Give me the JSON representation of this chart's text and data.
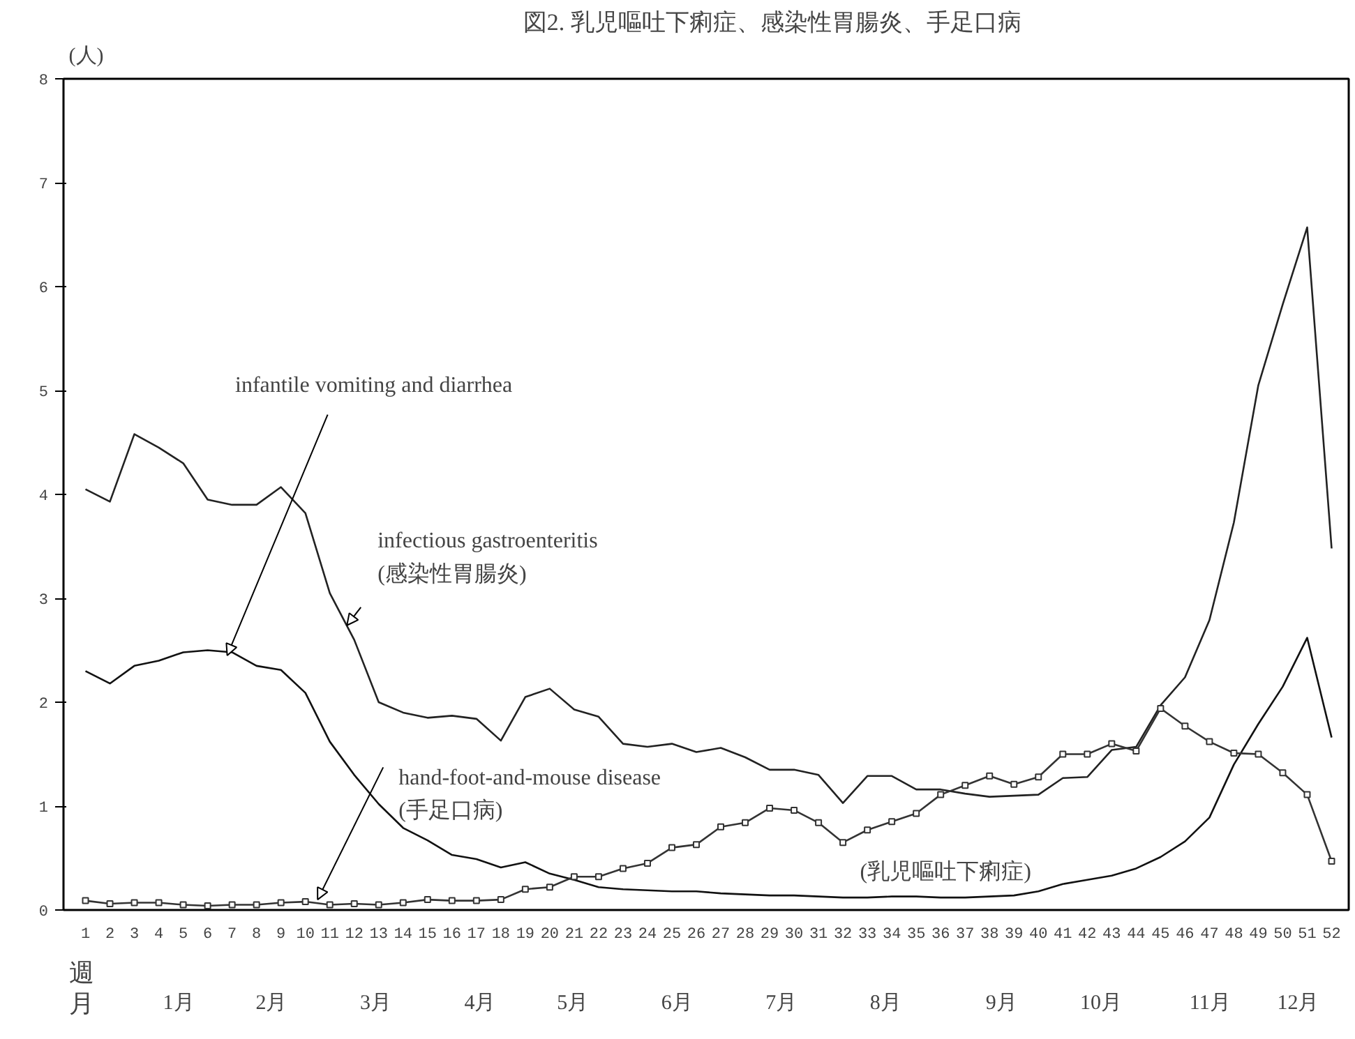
{
  "chart_data": {
    "type": "line",
    "title": "図2. 乳児嘔吐下痢症、感染性胃腸炎、手足口病",
    "ylabel": "(人)",
    "xlabel": "週",
    "x2label": "月",
    "x": [
      1,
      2,
      3,
      4,
      5,
      6,
      7,
      8,
      9,
      10,
      11,
      12,
      13,
      14,
      15,
      16,
      17,
      18,
      19,
      20,
      21,
      22,
      23,
      24,
      25,
      26,
      27,
      28,
      29,
      30,
      31,
      32,
      33,
      34,
      35,
      36,
      37,
      38,
      39,
      40,
      41,
      42,
      43,
      44,
      45,
      46,
      47,
      48,
      49,
      50,
      51,
      52
    ],
    "xlim": [
      0.1,
      52.7
    ],
    "ylim": [
      0,
      8
    ],
    "yticks": [
      0,
      1,
      2,
      3,
      4,
      5,
      6,
      7,
      8
    ],
    "xticks": [
      1,
      2,
      3,
      4,
      5,
      6,
      7,
      8,
      9,
      10,
      11,
      12,
      13,
      14,
      15,
      16,
      17,
      18,
      19,
      20,
      21,
      22,
      23,
      24,
      25,
      26,
      27,
      28,
      29,
      30,
      31,
      32,
      33,
      34,
      35,
      36,
      37,
      38,
      39,
      40,
      41,
      42,
      43,
      44,
      45,
      46,
      47,
      48,
      49,
      50,
      51,
      52
    ],
    "series": [
      {
        "color": "#222222",
        "marker": "none",
        "values": [
          4.05,
          3.93,
          4.58,
          4.45,
          4.3,
          3.95,
          3.9,
          3.9,
          4.07,
          3.82,
          3.05,
          2.6,
          2.0,
          1.9,
          1.85,
          1.87,
          1.84,
          1.63,
          2.05,
          2.13,
          1.93,
          1.86,
          1.6,
          1.57,
          1.6,
          1.52,
          1.56,
          1.47,
          1.35,
          1.35,
          1.3,
          1.03,
          1.29,
          1.29,
          1.16,
          1.16,
          1.12,
          1.09,
          1.1,
          1.11,
          1.27,
          1.28,
          1.54,
          1.57,
          1.97,
          2.24,
          2.79,
          3.73,
          5.05,
          5.83,
          6.57,
          3.48
        ]
      },
      {
        "color": "#111111",
        "marker": "none",
        "values": [
          2.3,
          2.18,
          2.35,
          2.4,
          2.48,
          2.5,
          2.48,
          2.35,
          2.31,
          2.09,
          1.62,
          1.3,
          1.02,
          0.79,
          0.67,
          0.53,
          0.49,
          0.41,
          0.46,
          0.35,
          0.29,
          0.22,
          0.2,
          0.19,
          0.18,
          0.18,
          0.16,
          0.15,
          0.14,
          0.14,
          0.13,
          0.12,
          0.12,
          0.13,
          0.13,
          0.12,
          0.12,
          0.13,
          0.14,
          0.18,
          0.25,
          0.29,
          0.33,
          0.4,
          0.51,
          0.66,
          0.89,
          1.4,
          1.79,
          2.15,
          2.62,
          1.66
        ]
      },
      {
        "color": "#333333",
        "marker": "square",
        "values": [
          0.09,
          0.06,
          0.07,
          0.07,
          0.05,
          0.04,
          0.05,
          0.05,
          0.07,
          0.08,
          0.05,
          0.06,
          0.05,
          0.07,
          0.1,
          0.09,
          0.09,
          0.1,
          0.2,
          0.22,
          0.32,
          0.32,
          0.4,
          0.45,
          0.6,
          0.63,
          0.8,
          0.84,
          0.98,
          0.96,
          0.84,
          0.65,
          0.77,
          0.85,
          0.93,
          1.11,
          1.2,
          1.29,
          1.21,
          1.28,
          1.5,
          1.5,
          1.6,
          1.53,
          1.94,
          1.77,
          1.62,
          1.51,
          1.5,
          1.32,
          1.11,
          0.47
        ]
      }
    ],
    "annotations": [
      {
        "text": "infantile vomiting and diarrhea",
        "x": 6.8,
        "y": 2.45
      },
      {
        "text": "infectious gastroenteritis\n(感染性胃腸炎)",
        "x": 11.7,
        "y": 2.74
      },
      {
        "text": "hand-foot-and-mouse disease\n(手足口病)",
        "x": 10.5,
        "y": 0.1
      },
      "(乳児嘔吐下痢症)",
      "1月",
      "2月",
      "3月",
      "4月",
      "5月",
      "6月",
      "7月",
      "8月",
      "9月",
      "10月",
      "11月",
      "12月"
    ]
  }
}
